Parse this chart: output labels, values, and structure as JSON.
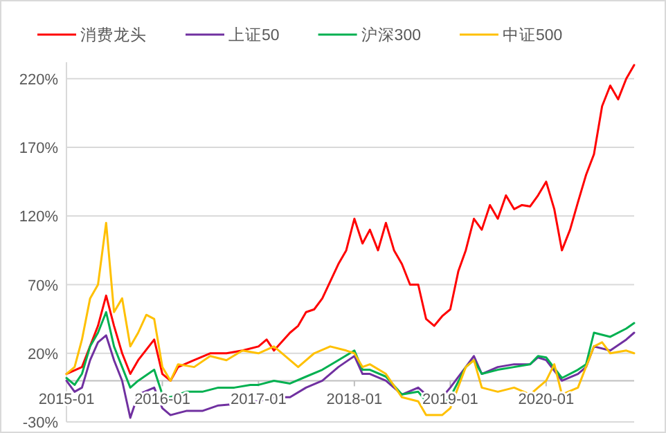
{
  "chart_data": {
    "type": "line",
    "xlim": [
      "2015-01",
      "2020-12"
    ],
    "xticks": [
      {
        "value": "2015-01",
        "label": "2015-01"
      },
      {
        "value": "2016-01",
        "label": "2016-01"
      },
      {
        "value": "2017-01",
        "label": "2017-01"
      },
      {
        "value": "2018-01",
        "label": "2018-01"
      },
      {
        "value": "2019-01",
        "label": "2019-01"
      },
      {
        "value": "2020-01",
        "label": "2020-01"
      }
    ],
    "ylim": [
      -30,
      232
    ],
    "yticks": [
      {
        "value": -30,
        "label": "-30%"
      },
      {
        "value": 20,
        "label": "20%"
      },
      {
        "value": 70,
        "label": "70%"
      },
      {
        "value": 120,
        "label": "120%"
      },
      {
        "value": 170,
        "label": "170%"
      },
      {
        "value": 220,
        "label": "220%"
      }
    ],
    "grid": "y",
    "legend": "top",
    "line_style": "solid",
    "marker": "none",
    "series": [
      {
        "name": "消费龙头",
        "color": "#ff0000",
        "x": [
          "2015-01",
          "2015-03",
          "2015-05",
          "2015-06",
          "2015-07",
          "2015-08",
          "2015-09",
          "2015-10",
          "2015-12",
          "2016-01",
          "2016-02",
          "2016-03",
          "2016-05",
          "2016-07",
          "2016-09",
          "2016-11",
          "2017-01",
          "2017-02",
          "2017-03",
          "2017-05",
          "2017-06",
          "2017-07",
          "2017-08",
          "2017-09",
          "2017-11",
          "2017-12",
          "2018-01",
          "2018-02",
          "2018-03",
          "2018-04",
          "2018-05",
          "2018-06",
          "2018-07",
          "2018-08",
          "2018-09",
          "2018-10",
          "2018-11",
          "2018-12",
          "2019-01",
          "2019-02",
          "2019-03",
          "2019-04",
          "2019-05",
          "2019-06",
          "2019-07",
          "2019-08",
          "2019-09",
          "2019-10",
          "2019-11",
          "2019-12",
          "2020-01",
          "2020-02",
          "2020-03",
          "2020-04",
          "2020-05",
          "2020-06",
          "2020-07",
          "2020-08",
          "2020-09",
          "2020-10",
          "2020-11",
          "2020-12"
        ],
        "values": [
          5,
          10,
          40,
          62,
          40,
          20,
          5,
          15,
          30,
          5,
          0,
          10,
          15,
          20,
          20,
          22,
          25,
          30,
          22,
          35,
          40,
          50,
          52,
          60,
          85,
          95,
          118,
          100,
          110,
          95,
          115,
          95,
          85,
          70,
          70,
          45,
          40,
          47,
          52,
          80,
          95,
          118,
          110,
          128,
          118,
          135,
          125,
          128,
          127,
          135,
          145,
          125,
          95,
          110,
          130,
          150,
          165,
          200,
          215,
          205,
          220,
          230
        ]
      },
      {
        "name": "上证50",
        "color": "#7030a0",
        "x": [
          "2015-01",
          "2015-02",
          "2015-03",
          "2015-04",
          "2015-05",
          "2015-06",
          "2015-07",
          "2015-08",
          "2015-09",
          "2015-10",
          "2015-12",
          "2016-01",
          "2016-02",
          "2016-04",
          "2016-06",
          "2016-08",
          "2016-10",
          "2016-12",
          "2017-01",
          "2017-03",
          "2017-05",
          "2017-07",
          "2017-09",
          "2017-11",
          "2018-01",
          "2018-02",
          "2018-03",
          "2018-05",
          "2018-07",
          "2018-09",
          "2018-10",
          "2018-12",
          "2019-01",
          "2019-03",
          "2019-04",
          "2019-05",
          "2019-07",
          "2019-09",
          "2019-11",
          "2019-12",
          "2020-01",
          "2020-03",
          "2020-05",
          "2020-06",
          "2020-07",
          "2020-09",
          "2020-11",
          "2020-12"
        ],
        "values": [
          0,
          -8,
          -5,
          15,
          28,
          33,
          15,
          0,
          -27,
          -10,
          -5,
          -20,
          -25,
          -22,
          -22,
          -18,
          -17,
          -15,
          -15,
          -12,
          -12,
          -5,
          0,
          10,
          18,
          5,
          5,
          0,
          -10,
          -5,
          -10,
          -12,
          -5,
          10,
          18,
          5,
          10,
          12,
          12,
          17,
          15,
          0,
          5,
          10,
          25,
          22,
          30,
          35
        ]
      },
      {
        "name": "沪深300",
        "color": "#00b050",
        "x": [
          "2015-01",
          "2015-02",
          "2015-03",
          "2015-04",
          "2015-05",
          "2015-06",
          "2015-07",
          "2015-08",
          "2015-09",
          "2015-10",
          "2015-12",
          "2016-01",
          "2016-02",
          "2016-04",
          "2016-06",
          "2016-08",
          "2016-10",
          "2016-12",
          "2017-01",
          "2017-03",
          "2017-05",
          "2017-07",
          "2017-09",
          "2017-11",
          "2018-01",
          "2018-02",
          "2018-03",
          "2018-05",
          "2018-07",
          "2018-09",
          "2018-10",
          "2018-12",
          "2019-01",
          "2019-03",
          "2019-04",
          "2019-05",
          "2019-07",
          "2019-09",
          "2019-11",
          "2019-12",
          "2020-01",
          "2020-03",
          "2020-05",
          "2020-06",
          "2020-07",
          "2020-09",
          "2020-11",
          "2020-12"
        ],
        "values": [
          2,
          -3,
          5,
          25,
          35,
          50,
          25,
          10,
          -5,
          0,
          8,
          -10,
          -12,
          -8,
          -8,
          -5,
          -5,
          -3,
          -3,
          0,
          -2,
          3,
          8,
          15,
          22,
          8,
          8,
          3,
          -10,
          -8,
          -15,
          -17,
          -12,
          10,
          15,
          5,
          8,
          10,
          12,
          18,
          17,
          2,
          8,
          12,
          35,
          32,
          38,
          42
        ]
      },
      {
        "name": "中证500",
        "color": "#ffc000",
        "x": [
          "2015-01",
          "2015-02",
          "2015-03",
          "2015-04",
          "2015-05",
          "2015-06",
          "2015-07",
          "2015-08",
          "2015-09",
          "2015-10",
          "2015-11",
          "2015-12",
          "2016-01",
          "2016-02",
          "2016-03",
          "2016-05",
          "2016-07",
          "2016-09",
          "2016-11",
          "2017-01",
          "2017-03",
          "2017-05",
          "2017-06",
          "2017-08",
          "2017-10",
          "2017-12",
          "2018-01",
          "2018-02",
          "2018-03",
          "2018-05",
          "2018-07",
          "2018-09",
          "2018-10",
          "2018-12",
          "2019-01",
          "2019-03",
          "2019-04",
          "2019-05",
          "2019-07",
          "2019-09",
          "2019-11",
          "2019-12",
          "2020-01",
          "2020-02",
          "2020-03",
          "2020-05",
          "2020-07",
          "2020-08",
          "2020-09",
          "2020-11",
          "2020-12"
        ],
        "values": [
          5,
          10,
          30,
          60,
          70,
          115,
          50,
          60,
          25,
          35,
          48,
          45,
          10,
          0,
          12,
          10,
          18,
          15,
          22,
          20,
          25,
          15,
          10,
          20,
          25,
          22,
          20,
          10,
          12,
          5,
          -12,
          -15,
          -25,
          -25,
          -20,
          10,
          15,
          -5,
          -8,
          -5,
          -10,
          -5,
          0,
          12,
          -10,
          -5,
          25,
          28,
          20,
          22,
          20
        ]
      }
    ]
  }
}
